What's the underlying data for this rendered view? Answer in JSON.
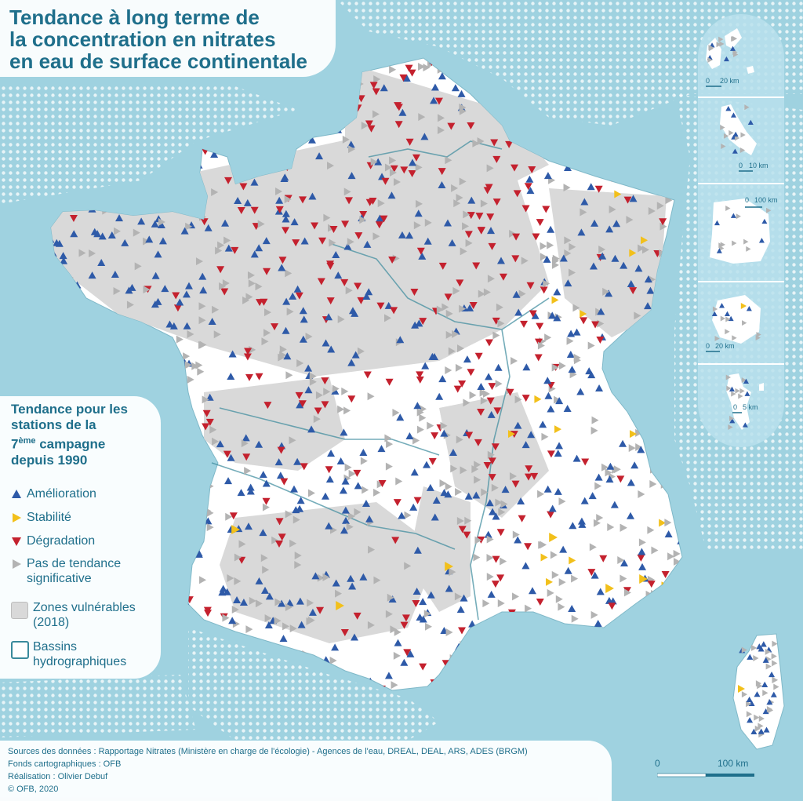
{
  "title": {
    "line1": "Tendance à long terme de",
    "line2": "la concentration en nitrates",
    "line3": "en eau de surface continentale"
  },
  "legend": {
    "title_line1": "Tendance pour les",
    "title_line2": "stations de la",
    "title_line3_num": "7",
    "title_line3_sup": "ème",
    "title_line3_rest": " campagne",
    "title_line4": "depuis 1990",
    "items": [
      {
        "label": "Amélioration",
        "color": "#2e5aa8",
        "symbol": "triangle-up"
      },
      {
        "label": "Stabilité",
        "color": "#f2c01b",
        "symbol": "triangle-right"
      },
      {
        "label": "Dégradation",
        "color": "#c4212e",
        "symbol": "triangle-down"
      },
      {
        "label_line1": "Pas de tendance",
        "label_line2": "significative",
        "color": "#b3b3b3",
        "symbol": "triangle-right"
      },
      {
        "label_line1": "Zones vulnérables",
        "label_line2": "(2018)",
        "color": "#d9d9d9",
        "symbol": "area"
      },
      {
        "label_line1": "Bassins",
        "label_line2": "hydrographiques",
        "color": "#3a8a9c",
        "symbol": "outline"
      }
    ]
  },
  "insets": {
    "guadeloupe_scale": "20 km",
    "martinique_scale": "10 km",
    "guyane_scale": "100 km",
    "reunion_scale": "20 km",
    "mayotte_scale": "5 km",
    "zero": "0"
  },
  "scale_bar": {
    "start": "0",
    "end": "100 km"
  },
  "sources": {
    "line1": "Sources des données : Rapportage Nitrates (Ministère en charge de l'écologie) - Agences de l'eau, DREAL, DEAL, ARS, ADES (BRGM)",
    "line2": "Fonds cartographiques : OFB",
    "line3": "Réalisation : Olivier Debuf",
    "line4": "© OFB, 2020"
  },
  "colors": {
    "sea": "#9fd2e0",
    "land": "#ffffff",
    "vulnerable": "#d9d9d9",
    "improve": "#2e5aa8",
    "stable": "#f2c01b",
    "degrade": "#c4212e",
    "none": "#b3b3b3",
    "title": "#1f6f8b"
  }
}
